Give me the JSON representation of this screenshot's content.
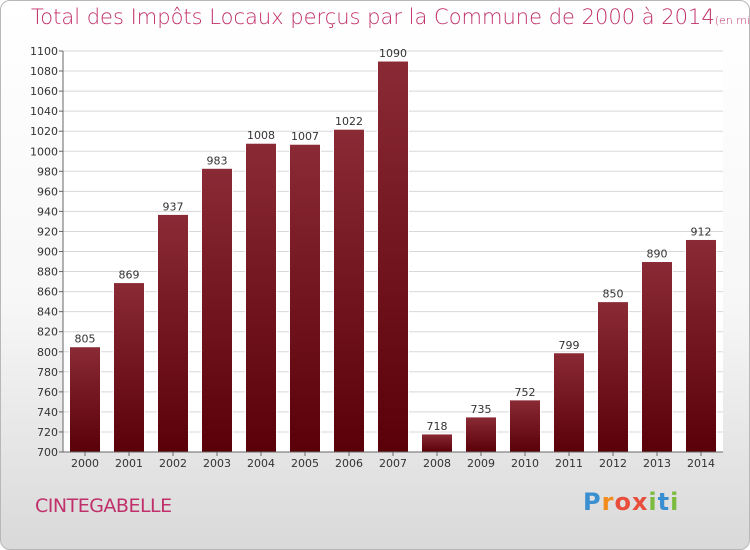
{
  "title": "Total des Impôts Locaux perçus par la Commune de 2000 à 2014",
  "title_unit": "(en milliers d'€)",
  "commune": "CINTEGABELLE",
  "brand": {
    "text": "Proxiti",
    "letters": [
      "P",
      "r",
      "o",
      "x",
      "i",
      "t",
      "i"
    ]
  },
  "colors": {
    "bar_top": "#8a2a35",
    "bar_bottom": "#5a0008",
    "title": "#c0306a"
  },
  "chart_data": {
    "type": "bar",
    "title": "Total des Impôts Locaux perçus par la Commune de 2000 à 2014",
    "categories": [
      "2000",
      "2001",
      "2002",
      "2003",
      "2004",
      "2005",
      "2006",
      "2007",
      "2008",
      "2009",
      "2010",
      "2011",
      "2012",
      "2013",
      "2014"
    ],
    "values": [
      805,
      869,
      937,
      983,
      1008,
      1007,
      1022,
      1090,
      718,
      735,
      752,
      799,
      850,
      890,
      912
    ],
    "ylim": [
      700,
      1100
    ],
    "yticks": [
      700,
      720,
      740,
      760,
      780,
      800,
      820,
      840,
      860,
      880,
      900,
      920,
      940,
      960,
      980,
      1000,
      1020,
      1040,
      1060,
      1080,
      1100
    ],
    "grid": true,
    "xlabel": "",
    "ylabel": ""
  }
}
